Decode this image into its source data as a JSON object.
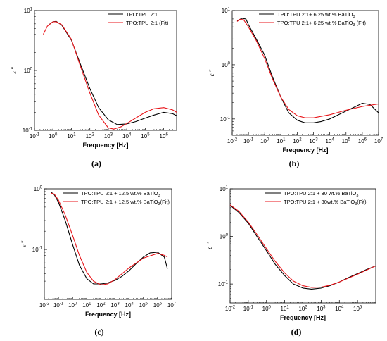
{
  "chart_data": [
    {
      "type": "line",
      "panel": "a",
      "caption": "(a)",
      "xlabel": "Frequency [Hz]",
      "ylabel": "ε \"",
      "xscale": "log",
      "yscale": "log",
      "xlim": [
        0.1,
        5000000
      ],
      "ylim": [
        0.1,
        10
      ],
      "xticks": [
        0.1,
        1,
        10,
        100,
        1000,
        10000,
        100000,
        1000000
      ],
      "yticks": [
        0.1,
        1,
        10
      ],
      "legend_position": "top-right",
      "color_measured": "#000000",
      "color_fit": "#e8161b",
      "series": [
        {
          "name": "TPO:TPU 2:1",
          "legend_main": "TPO:TPU 2:1",
          "legend_sub": "",
          "legend_tail": "",
          "x": [
            0.6,
            1,
            1.5,
            3,
            10,
            30,
            100,
            300,
            1000,
            3000,
            10000,
            30000,
            100000,
            300000,
            1000000,
            3000000,
            5000000
          ],
          "y": [
            5.8,
            6.5,
            6.6,
            5.7,
            3.2,
            1.3,
            0.5,
            0.24,
            0.15,
            0.125,
            0.128,
            0.14,
            0.16,
            0.18,
            0.2,
            0.19,
            0.175
          ]
        },
        {
          "name": "TPO:TPU 2:1 (Fit)",
          "legend_main": "TPO:TPU 2:1 (Fit)",
          "legend_sub": "",
          "legend_tail": "",
          "x": [
            0.3,
            0.5,
            1,
            1.5,
            3,
            10,
            30,
            100,
            300,
            1000,
            2000,
            5000,
            10000,
            30000,
            100000,
            300000,
            1000000,
            3000000,
            5000000
          ],
          "y": [
            4.0,
            5.5,
            6.5,
            6.5,
            5.8,
            3.3,
            1.2,
            0.42,
            0.18,
            0.11,
            0.105,
            0.115,
            0.13,
            0.16,
            0.2,
            0.23,
            0.24,
            0.22,
            0.2
          ]
        }
      ]
    },
    {
      "type": "line",
      "panel": "b",
      "caption": "(b)",
      "xlabel": "Frequency [Hz]",
      "ylabel": "ε \"",
      "xscale": "log",
      "yscale": "log",
      "xlim": [
        0.01,
        10000000
      ],
      "ylim": [
        0.05,
        10
      ],
      "xticks": [
        0.01,
        0.1,
        1,
        10,
        100,
        1000,
        10000,
        100000,
        1000000,
        10000000
      ],
      "yticks": [
        0.1,
        1,
        10
      ],
      "legend_position": "top-right",
      "color_measured": "#000000",
      "color_fit": "#e8161b",
      "series": [
        {
          "name": "TPO:TPU 2:1+ 6.25 wt.% BaTiO3",
          "legend_main": "TPO:TPU 2:1+ 6.25 wt.% BaTiO",
          "legend_sub": "3",
          "legend_tail": "",
          "x": [
            0.02,
            0.04,
            0.07,
            0.1,
            0.3,
            1,
            3,
            10,
            30,
            100,
            300,
            1000,
            3000,
            10000,
            100000,
            1000000,
            3000000,
            10000000
          ],
          "y": [
            6.5,
            7.2,
            7.0,
            5.5,
            3.0,
            1.5,
            0.6,
            0.25,
            0.13,
            0.095,
            0.085,
            0.085,
            0.09,
            0.1,
            0.14,
            0.195,
            0.185,
            0.13
          ]
        },
        {
          "name": "TPO:TPU 2:1+ 6.25 wt.% BaTiO3 (Fit)",
          "legend_main": "TPO:TPU 2:1+ 6.25 wt.% BaTiO",
          "legend_sub": "3",
          "legend_tail": " (Fit)",
          "x": [
            0.02,
            0.03,
            0.05,
            0.1,
            0.3,
            1,
            3,
            10,
            30,
            100,
            300,
            1000,
            10000,
            100000,
            1000000,
            10000000
          ],
          "y": [
            6.3,
            6.9,
            6.8,
            5.0,
            2.8,
            1.3,
            0.55,
            0.25,
            0.15,
            0.115,
            0.105,
            0.105,
            0.12,
            0.145,
            0.17,
            0.19
          ]
        }
      ]
    },
    {
      "type": "line",
      "panel": "c",
      "caption": "(c)",
      "xlabel": "Frequency [Hz]",
      "ylabel": "ε \"",
      "xscale": "log",
      "yscale": "log",
      "xlim": [
        0.01,
        10000000
      ],
      "ylim": [
        0.015,
        1
      ],
      "xticks": [
        0.01,
        0.1,
        1,
        10,
        100,
        1000,
        10000,
        100000,
        1000000,
        10000000
      ],
      "yticks": [
        0.1,
        1
      ],
      "legend_position": "top-right",
      "color_measured": "#000000",
      "color_fit": "#e8161b",
      "series": [
        {
          "name": "TPO:TPU 2:1 + 12.5 wt.% BaTiO3",
          "legend_main": "TPO:TPU 2:1 + 12.5 wt.% BaTiO",
          "legend_sub": "3",
          "legend_tail": "",
          "x": [
            0.03,
            0.05,
            0.1,
            0.3,
            1,
            3,
            10,
            30,
            100,
            300,
            1000,
            3000,
            10000,
            30000,
            100000,
            300000,
            1000000,
            3000000,
            5000000
          ],
          "y": [
            0.88,
            0.8,
            0.6,
            0.3,
            0.12,
            0.055,
            0.033,
            0.027,
            0.027,
            0.028,
            0.031,
            0.036,
            0.045,
            0.058,
            0.075,
            0.088,
            0.09,
            0.075,
            0.048
          ]
        },
        {
          "name": "TPO:TPU 2:1 + 12.5 wt.% BaTiO3(Fit)",
          "legend_main": "TPO:TPU 2:1 + 12.5 wt.% BaTiO",
          "legend_sub": "3",
          "legend_tail": "(Fit)",
          "x": [
            0.03,
            0.05,
            0.1,
            0.3,
            1,
            3,
            10,
            30,
            100,
            300,
            1000,
            10000,
            100000,
            1000000,
            3000000,
            5000000
          ],
          "y": [
            0.85,
            0.82,
            0.65,
            0.37,
            0.17,
            0.08,
            0.042,
            0.03,
            0.026,
            0.027,
            0.032,
            0.05,
            0.072,
            0.086,
            0.08,
            0.075
          ]
        }
      ]
    },
    {
      "type": "line",
      "panel": "d",
      "caption": "(d)",
      "xlabel": "Frequency [Hz]",
      "ylabel": "ε \"",
      "xscale": "log",
      "yscale": "log",
      "xlim": [
        0.01,
        1000000
      ],
      "ylim": [
        0.04,
        10
      ],
      "xticks": [
        0.01,
        0.1,
        1,
        10,
        100,
        1000,
        10000,
        100000
      ],
      "yticks": [
        0.1,
        1,
        10
      ],
      "legend_position": "top-right",
      "color_measured": "#000000",
      "color_fit": "#e8161b",
      "series": [
        {
          "name": "TPO:TPU 2:1 + 30 wt.% BaTiO3",
          "legend_main": "TPO:TPU 2:1 + 30 wt.% BaTiO",
          "legend_sub": "3",
          "legend_tail": "",
          "x": [
            0.01,
            0.03,
            0.1,
            0.3,
            1,
            3,
            10,
            30,
            100,
            300,
            1000,
            3000,
            10000,
            30000,
            100000,
            300000,
            1000000
          ],
          "y": [
            4.5,
            3.2,
            1.9,
            1.0,
            0.5,
            0.26,
            0.15,
            0.1,
            0.082,
            0.078,
            0.082,
            0.092,
            0.11,
            0.135,
            0.165,
            0.2,
            0.24
          ]
        },
        {
          "name": "TPO:TPU 2:1 + 30wt.% BaTiO3(Fit)",
          "legend_main": "TPO:TPU 2:1 + 30wt.% BaTiO",
          "legend_sub": "3",
          "legend_tail": "(Fit)",
          "x": [
            0.01,
            0.03,
            0.1,
            0.3,
            1,
            3,
            10,
            30,
            100,
            300,
            1000,
            3000,
            10000,
            100000,
            1000000
          ],
          "y": [
            4.6,
            3.4,
            2.0,
            1.1,
            0.55,
            0.3,
            0.17,
            0.115,
            0.092,
            0.085,
            0.086,
            0.094,
            0.11,
            0.16,
            0.24
          ]
        }
      ]
    }
  ]
}
